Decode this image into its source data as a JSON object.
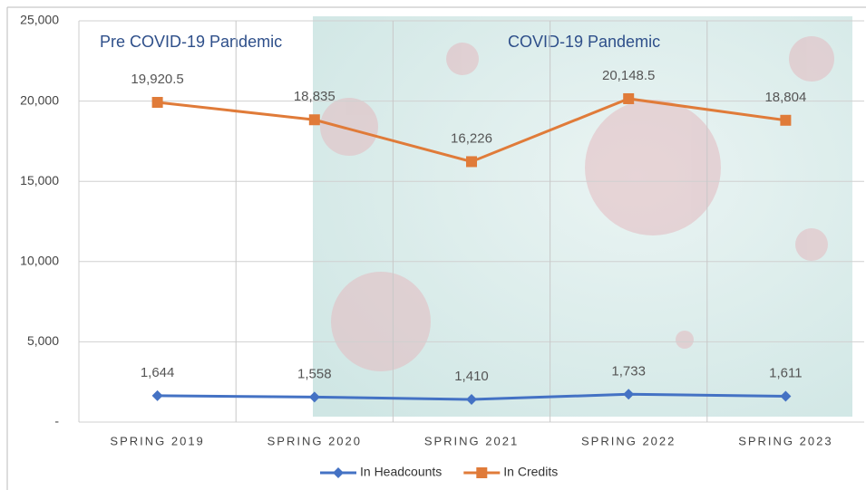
{
  "chart_data": {
    "type": "line",
    "categories": [
      "SPRING 2019",
      "SPRING 2020",
      "SPRING 2021",
      "SPRING 2022",
      "SPRING 2023"
    ],
    "series": [
      {
        "name": "In Headcounts",
        "color": "#4472c4",
        "marker": "diamond",
        "values": [
          1644,
          1558,
          1410,
          1733,
          1611
        ],
        "value_labels": [
          "1,644",
          "1,558",
          "1,410",
          "1,733",
          "1,611"
        ]
      },
      {
        "name": "In Credits",
        "color": "#e07b39",
        "marker": "square",
        "values": [
          19920.5,
          18835,
          16226,
          20148.5,
          18804
        ],
        "value_labels": [
          "19,920.5",
          "18,835",
          "16,226",
          "20,148.5",
          "18,804"
        ]
      }
    ],
    "ylim": [
      0,
      25000
    ],
    "yticks": [
      {
        "value": 0,
        "label": "-"
      },
      {
        "value": 5000,
        "label": "5,000"
      },
      {
        "value": 10000,
        "label": "10,000"
      },
      {
        "value": 15000,
        "label": "15,000"
      },
      {
        "value": 20000,
        "label": "20,000"
      },
      {
        "value": 25000,
        "label": "25,000"
      }
    ],
    "grid": true,
    "annotations": [
      "Pre COVID-19 Pandemic",
      "COVID-19 Pandemic"
    ],
    "legend": "bottom"
  }
}
